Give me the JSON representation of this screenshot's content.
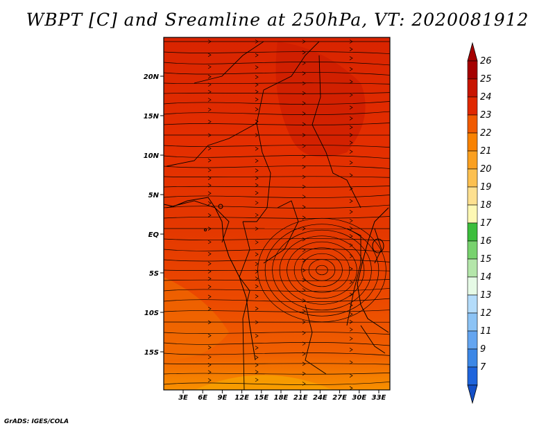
{
  "title": "WBPT [C] and Sreamline at 250hPa, VT: 2020081912",
  "footer": "GrADS: IGES/COLA",
  "map": {
    "lat_ticks": [
      "20N",
      "15N",
      "10N",
      "5N",
      "EQ",
      "5S",
      "10S",
      "15S"
    ],
    "lon_ticks": [
      "3E",
      "6E",
      "9E",
      "12E",
      "15E",
      "18E",
      "21E",
      "24E",
      "27E",
      "30E",
      "33E"
    ]
  },
  "colorbar": {
    "levels": [
      {
        "label": "26",
        "color": "#a50000"
      },
      {
        "label": "25",
        "color": "#c81400"
      },
      {
        "label": "24",
        "color": "#e02800"
      },
      {
        "label": "23",
        "color": "#f05a00"
      },
      {
        "label": "22",
        "color": "#f88200"
      },
      {
        "label": "21",
        "color": "#faa020"
      },
      {
        "label": "20",
        "color": "#fcc050"
      },
      {
        "label": "19",
        "color": "#fde090"
      },
      {
        "label": "18",
        "color": "#fdf8b4"
      },
      {
        "label": "17",
        "color": "#3cbe3c"
      },
      {
        "label": "16",
        "color": "#78d26e"
      },
      {
        "label": "15",
        "color": "#b4e6aa"
      },
      {
        "label": "14",
        "color": "#e6fae6"
      },
      {
        "label": "13",
        "color": "#b4dcfa"
      },
      {
        "label": "12",
        "color": "#8cc3f5"
      },
      {
        "label": "11",
        "color": "#64a5f0"
      },
      {
        "label": "9",
        "color": "#3c87e6"
      },
      {
        "label": "7",
        "color": "#1e64dc"
      }
    ],
    "low_color": "#1450c8"
  }
}
